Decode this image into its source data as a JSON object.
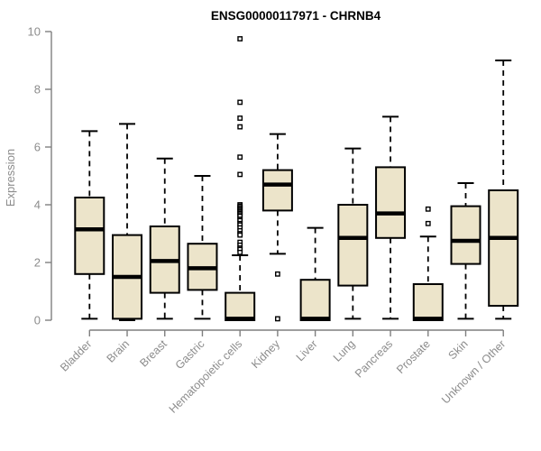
{
  "chart_data": {
    "type": "boxplot",
    "title": "ENSG00000117971 - CHRNB4",
    "ylabel": "Expression",
    "ylim": [
      0,
      10
    ],
    "yticks": [
      0,
      2,
      4,
      6,
      8,
      10
    ],
    "grid": false,
    "legend": "none",
    "colors": {
      "box_fill": "#ece4ca",
      "box_stroke": "#000000",
      "median": "#000000",
      "whisker": "#000000",
      "axis": "#7f7f7f",
      "tick_label": "#8c8c8c",
      "title": "#000000",
      "background": "#ffffff"
    },
    "categories": [
      "Bladder",
      "Brain",
      "Breast",
      "Gastric",
      "Hematopoietic cells",
      "Kidney",
      "Liver",
      "Lung",
      "Pancreas",
      "Prostate",
      "Skin",
      "Unknown / Other"
    ],
    "series": [
      {
        "category": "Bladder",
        "whisker_low": 0.05,
        "q1": 1.6,
        "median": 3.15,
        "q3": 4.25,
        "whisker_high": 6.55,
        "outliers": []
      },
      {
        "category": "Brain",
        "whisker_low": 0.0,
        "q1": 0.05,
        "median": 1.5,
        "q3": 2.95,
        "whisker_high": 6.8,
        "outliers": []
      },
      {
        "category": "Breast",
        "whisker_low": 0.05,
        "q1": 0.95,
        "median": 2.05,
        "q3": 3.25,
        "whisker_high": 5.6,
        "outliers": []
      },
      {
        "category": "Gastric",
        "whisker_low": 0.05,
        "q1": 1.05,
        "median": 1.8,
        "q3": 2.65,
        "whisker_high": 5.0,
        "outliers": []
      },
      {
        "category": "Hematopoietic cells",
        "whisker_low": 0.0,
        "q1": 0.0,
        "median": 0.05,
        "q3": 0.95,
        "whisker_high": 2.25,
        "outliers": [
          9.75,
          7.55,
          7.0,
          6.7,
          5.65,
          5.05,
          4.0,
          3.95,
          3.9,
          3.85,
          3.8,
          3.75,
          3.7,
          3.65,
          3.6,
          3.5,
          3.45,
          3.35,
          3.3,
          3.2,
          3.1,
          3.0,
          2.95,
          2.7,
          2.6,
          2.5,
          2.45,
          2.35
        ]
      },
      {
        "category": "Kidney",
        "whisker_low": 2.3,
        "q1": 3.8,
        "median": 4.7,
        "q3": 5.2,
        "whisker_high": 6.45,
        "outliers": [
          1.6,
          0.05
        ]
      },
      {
        "category": "Liver",
        "whisker_low": 0.0,
        "q1": 0.0,
        "median": 0.05,
        "q3": 1.4,
        "whisker_high": 3.2,
        "outliers": []
      },
      {
        "category": "Lung",
        "whisker_low": 0.05,
        "q1": 1.2,
        "median": 2.85,
        "q3": 4.0,
        "whisker_high": 5.95,
        "outliers": []
      },
      {
        "category": "Pancreas",
        "whisker_low": 0.05,
        "q1": 2.85,
        "median": 3.7,
        "q3": 5.3,
        "whisker_high": 7.05,
        "outliers": []
      },
      {
        "category": "Prostate",
        "whisker_low": 0.0,
        "q1": 0.0,
        "median": 0.05,
        "q3": 1.25,
        "whisker_high": 2.9,
        "outliers": [
          3.85,
          3.35
        ]
      },
      {
        "category": "Skin",
        "whisker_low": 0.05,
        "q1": 1.95,
        "median": 2.75,
        "q3": 3.95,
        "whisker_high": 4.75,
        "outliers": []
      },
      {
        "category": "Unknown / Other",
        "whisker_low": 0.05,
        "q1": 0.5,
        "median": 2.85,
        "q3": 4.5,
        "whisker_high": 9.0,
        "outliers": []
      }
    ]
  }
}
